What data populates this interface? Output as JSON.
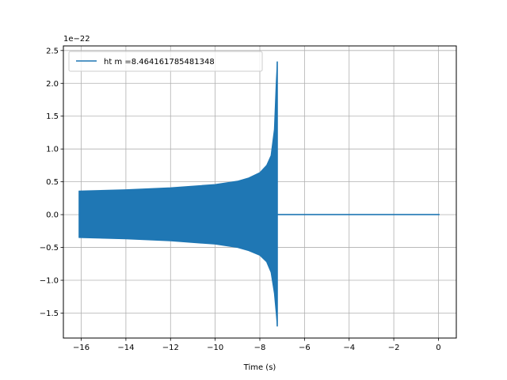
{
  "chart_data": {
    "type": "line",
    "xlabel": "Time (s)",
    "ylabel": "",
    "y_offset_label": "1e−22",
    "xlim": [
      -16.8,
      0.8
    ],
    "ylim": [
      -1.88,
      2.57
    ],
    "x_ticks": [
      -16,
      -14,
      -12,
      -10,
      -8,
      -6,
      -4,
      -2,
      0
    ],
    "x_tick_labels": [
      "−16",
      "−14",
      "−12",
      "−10",
      "−8",
      "−6",
      "−4",
      "−2",
      "0"
    ],
    "y_ticks": [
      -1.5,
      -1.0,
      -0.5,
      0.0,
      0.5,
      1.0,
      1.5,
      2.0,
      2.5
    ],
    "y_tick_labels": [
      "−1.5",
      "−1.0",
      "−0.5",
      "0.0",
      "0.5",
      "1.0",
      "1.5",
      "2.0",
      "2.5"
    ],
    "grid": true,
    "legend_position": "top-left",
    "series": [
      {
        "name": "ht m =8.464161785481348",
        "color": "#1f77b4",
        "signal_start": -16.1,
        "merger_time": -7.2,
        "signal_end": 0.05,
        "upper_envelope": [
          [
            -16.1,
            0.36
          ],
          [
            -14,
            0.38
          ],
          [
            -12,
            0.41
          ],
          [
            -10,
            0.46
          ],
          [
            -9,
            0.51
          ],
          [
            -8.5,
            0.56
          ],
          [
            -8,
            0.64
          ],
          [
            -7.7,
            0.75
          ],
          [
            -7.5,
            0.9
          ],
          [
            -7.35,
            1.3
          ],
          [
            -7.27,
            2.0
          ],
          [
            -7.22,
            2.33
          ]
        ],
        "lower_envelope": [
          [
            -16.1,
            -0.35
          ],
          [
            -14,
            -0.37
          ],
          [
            -12,
            -0.4
          ],
          [
            -10,
            -0.45
          ],
          [
            -9,
            -0.5
          ],
          [
            -8.5,
            -0.55
          ],
          [
            -8,
            -0.62
          ],
          [
            -7.7,
            -0.72
          ],
          [
            -7.5,
            -0.88
          ],
          [
            -7.35,
            -1.2
          ],
          [
            -7.27,
            -1.5
          ],
          [
            -7.22,
            -1.7
          ]
        ]
      }
    ]
  }
}
